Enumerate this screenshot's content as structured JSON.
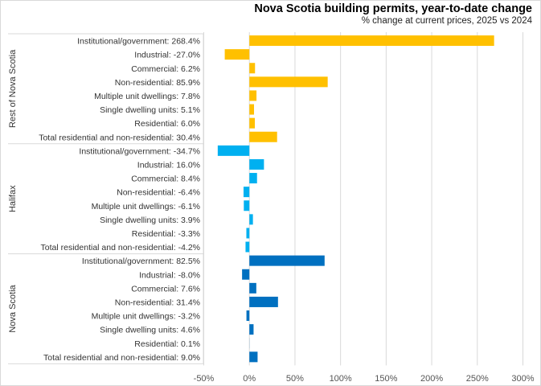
{
  "chart_data": {
    "type": "bar",
    "orientation": "horizontal",
    "title": "Nova Scotia building permits, year-to-date change",
    "subtitle": "% change at current prices, 2025 vs 2024",
    "xlabel": "",
    "ylabel": "",
    "xlim": [
      -50,
      300
    ],
    "x_ticks": [
      "-50%",
      "0%",
      "50%",
      "100%",
      "150%",
      "200%",
      "250%",
      "300%"
    ],
    "x_tick_values": [
      -50,
      0,
      50,
      100,
      150,
      200,
      250,
      300
    ],
    "grid": "vertical",
    "legend": "none",
    "groups": [
      {
        "name": "Rest of Nova Scotia",
        "color": "#FFC000",
        "categories": [
          "Institutional/government: 268.4%",
          "Industrial: -27.0%",
          "Commercial: 6.2%",
          "Non-residential: 85.9%",
          "Multiple unit dwellings: 7.8%",
          "Single dwelling units: 5.1%",
          "Residential: 6.0%",
          "Total residential and non-residential: 30.4%"
        ],
        "values": [
          268.4,
          -27.0,
          6.2,
          85.9,
          7.8,
          5.1,
          6.0,
          30.4
        ]
      },
      {
        "name": "Halifax",
        "color": "#00B0F0",
        "categories": [
          "Institutional/government: -34.7%",
          "Industrial: 16.0%",
          "Commercial: 8.4%",
          "Non-residential: -6.4%",
          "Multiple unit dwellings: -6.1%",
          "Single dwelling units: 3.9%",
          "Residential: -3.3%",
          "Total residential and non-residential: -4.2%"
        ],
        "values": [
          -34.7,
          16.0,
          8.4,
          -6.4,
          -6.1,
          3.9,
          -3.3,
          -4.2
        ]
      },
      {
        "name": "Nova Scotia",
        "color": "#0070C0",
        "categories": [
          "Institutional/government: 82.5%",
          "Industrial: -8.0%",
          "Commercial: 7.6%",
          "Non-residential: 31.4%",
          "Multiple unit dwellings: -3.2%",
          "Single dwelling units: 4.6%",
          "Residential: 0.1%",
          "Total residential and non-residential: 9.0%"
        ],
        "values": [
          82.5,
          -8.0,
          7.6,
          31.4,
          -3.2,
          4.6,
          0.1,
          9.0
        ]
      }
    ]
  }
}
